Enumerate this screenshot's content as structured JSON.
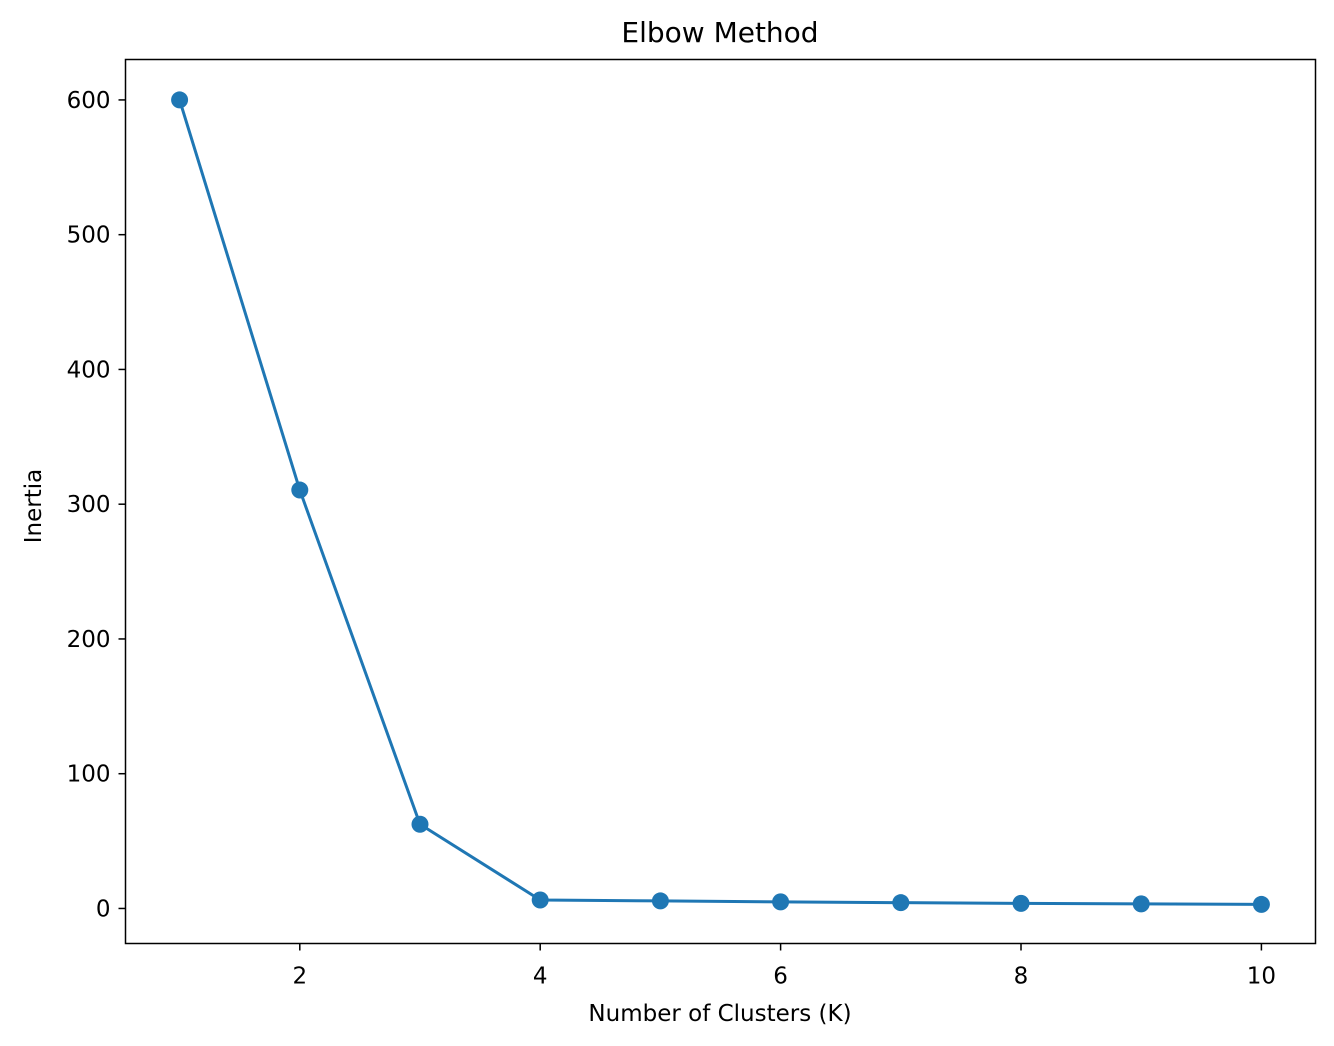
{
  "chart_data": {
    "type": "line",
    "title": "Elbow Method",
    "xlabel": "Number of Clusters (K)",
    "ylabel": "Inertia",
    "x": [
      1,
      2,
      3,
      4,
      5,
      6,
      7,
      8,
      9,
      10
    ],
    "series": [
      {
        "values": [
          600,
          310.5,
          62.5,
          6.3,
          5.6,
          4.9,
          4.3,
          3.8,
          3.4,
          3.0
        ],
        "color": "#1f77b4",
        "marker": "circle"
      }
    ],
    "xlim": [
      0.55,
      10.45
    ],
    "ylim": [
      -26,
      630
    ],
    "x_ticks": [
      2,
      4,
      6,
      8,
      10
    ],
    "y_ticks": [
      0,
      100,
      200,
      300,
      400,
      500,
      600
    ],
    "grid": false,
    "legend": false
  }
}
